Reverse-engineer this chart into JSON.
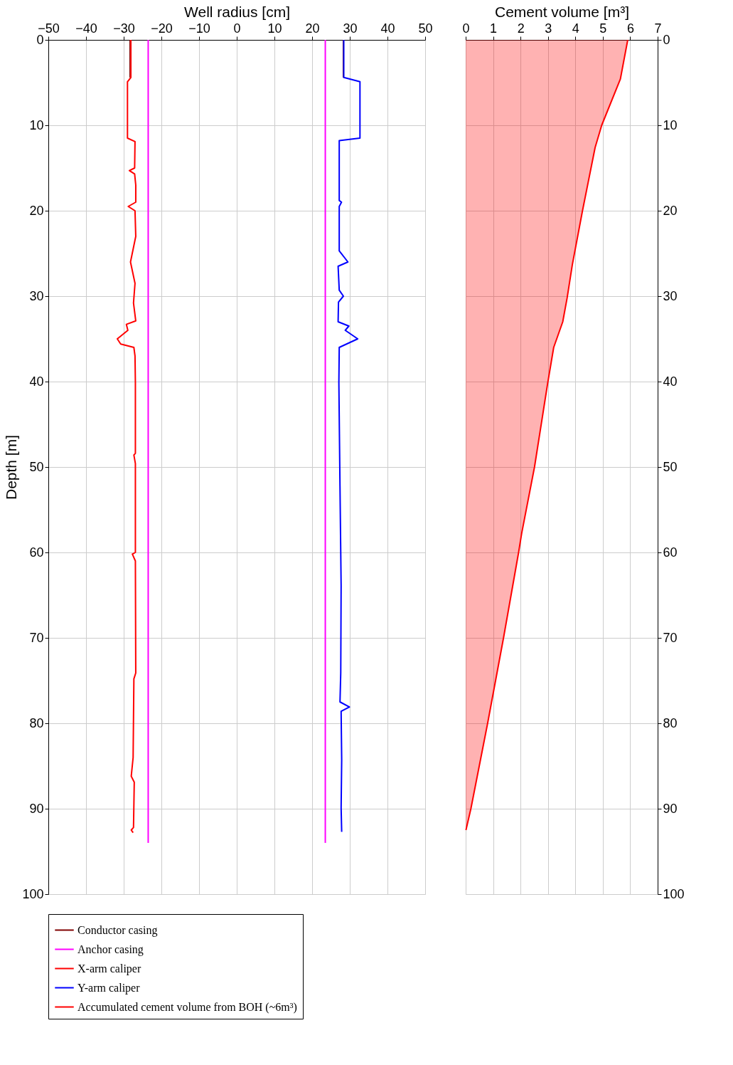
{
  "chart_data": [
    {
      "type": "line",
      "xlabel": "Well radius [cm]",
      "ylabel": "Depth [m]",
      "xlim": [
        -50,
        50
      ],
      "xticks": [
        -50,
        -40,
        -30,
        -20,
        -10,
        0,
        10,
        20,
        30,
        40,
        50
      ],
      "ylim": [
        100,
        0
      ],
      "yticks": [
        0,
        10,
        20,
        30,
        40,
        50,
        60,
        70,
        80,
        90,
        100
      ],
      "grid": true,
      "legend": "bottom",
      "series": [
        {
          "name": "Conductor casing",
          "color": "#800000",
          "x": [
            -28.3,
            -28.3,
            null,
            28.3,
            28.3
          ],
          "values": [
            0,
            4.4,
            null,
            0,
            4.4
          ]
        },
        {
          "name": "Anchor casing",
          "color": "#ff00ff",
          "x": [
            -23.5,
            -23.5,
            null,
            23.5,
            23.5
          ],
          "values": [
            0,
            94,
            null,
            0,
            94
          ]
        },
        {
          "name": "X-arm caliper",
          "color": "#ff0000",
          "x": [
            -28.1,
            -28.1,
            -29.0,
            -29.0,
            -27.0,
            -27.1,
            -28.5,
            -27.1,
            -26.8,
            -26.8,
            -28.8,
            -27.0,
            -26.8,
            -28.2,
            -27.0,
            -27.4,
            -26.8,
            -29.3,
            -28.9,
            -31.7,
            -30.8,
            -27.3,
            -27.0,
            -26.9,
            -26.9,
            -27.3,
            -26.9,
            -26.9,
            -27.7,
            -26.9,
            -26.8,
            -27.3,
            -27.5,
            -28.0,
            -27.2,
            -27.4,
            -28.0,
            -27.5
          ],
          "values": [
            0,
            4.4,
            4.9,
            11.5,
            11.9,
            15.0,
            15.3,
            15.7,
            17.0,
            19.0,
            19.5,
            20.0,
            23.0,
            26.0,
            28.5,
            30.8,
            32.9,
            33.3,
            34.0,
            35.0,
            35.6,
            36.0,
            37.0,
            40.1,
            48.4,
            48.6,
            49.6,
            60.0,
            60.2,
            61.0,
            74.1,
            74.8,
            84.0,
            86.2,
            86.9,
            92.2,
            92.5,
            92.8
          ]
        },
        {
          "name": "Y-arm caliper",
          "color": "#0000ff",
          "x": [
            28.4,
            28.4,
            32.7,
            32.7,
            27.2,
            27.2,
            27.8,
            27.2,
            27.2,
            29.5,
            26.9,
            27.2,
            28.3,
            27.0,
            26.9,
            29.75,
            28.8,
            32.1,
            27.2,
            27.1,
            27.4,
            27.7,
            27.6,
            27.4,
            29.9,
            27.7,
            27.85,
            27.7,
            27.85
          ],
          "values": [
            0,
            4.4,
            4.9,
            11.5,
            11.8,
            18.8,
            19.0,
            19.5,
            24.7,
            26.0,
            26.5,
            29.3,
            30.0,
            30.7,
            33.0,
            33.5,
            34.0,
            35.0,
            36.0,
            40.1,
            52.3,
            63.9,
            74.1,
            77.5,
            78.1,
            78.6,
            84.3,
            89.9,
            92.7
          ]
        }
      ]
    },
    {
      "type": "area",
      "xlabel": "Cement volume [m³]",
      "xlim": [
        0,
        7
      ],
      "xticks": [
        0,
        1,
        2,
        3,
        4,
        5,
        6,
        7
      ],
      "ylim": [
        100,
        0
      ],
      "yticks": [
        0,
        10,
        20,
        30,
        40,
        50,
        60,
        70,
        80,
        90,
        100
      ],
      "grid": true,
      "legend": "bottom",
      "series": [
        {
          "name": "Accumulated cement volume from BOH (~6m³)",
          "color": "#ff0000",
          "x": [
            5.91,
            5.64,
            4.96,
            4.72,
            4.26,
            3.89,
            3.7,
            3.54,
            3.21,
            2.99,
            2.51,
            2.04,
            1.93,
            1.38,
            0.8,
            0.19,
            0.01
          ],
          "values": [
            0,
            4.6,
            10,
            12.6,
            20,
            26.3,
            30.2,
            33,
            36,
            40.2,
            50,
            57.8,
            60,
            70,
            80,
            90,
            92.5
          ]
        }
      ]
    }
  ]
}
